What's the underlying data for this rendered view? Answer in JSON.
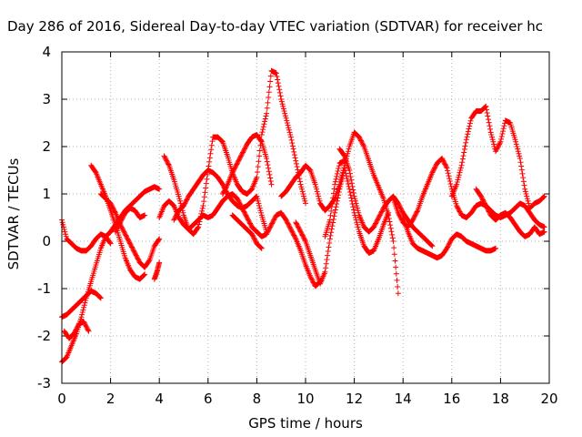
{
  "chart_data": {
    "type": "scatter",
    "title": "Day 286 of 2016, Sidereal Day-to-day VTEC variation (SDTVAR) for receiver hc",
    "xlabel": "GPS time / hours",
    "ylabel": "SDTVAR / TECUs",
    "xlim": [
      0,
      20
    ],
    "ylim": [
      -3,
      4
    ],
    "xticks": [
      0,
      2,
      4,
      6,
      8,
      10,
      12,
      14,
      16,
      18,
      20
    ],
    "yticks": [
      -3,
      -2,
      -1,
      0,
      1,
      2,
      3,
      4
    ],
    "grid": true,
    "marker": "+",
    "color": "#ff0000",
    "series": [
      {
        "x": [
          0,
          0.2,
          0.4,
          0.6,
          0.8,
          1.0,
          1.2,
          1.4,
          1.6,
          1.8,
          2.0
        ],
        "y": [
          0.45,
          0.05,
          -0.05,
          -0.15,
          -0.2,
          -0.2,
          -0.1,
          0.05,
          0.15,
          0.1,
          -0.05
        ]
      },
      {
        "x": [
          0,
          0.2,
          0.4,
          0.6,
          0.8,
          1.0,
          1.2,
          1.4,
          1.6,
          1.8,
          2.0,
          2.2,
          2.4,
          2.6,
          2.8,
          3.0,
          3.2,
          3.4,
          3.6,
          3.8,
          4.0
        ],
        "y": [
          -2.55,
          -2.45,
          -2.2,
          -1.95,
          -1.6,
          -1.2,
          -0.85,
          -0.5,
          -0.15,
          0.1,
          0.2,
          0.35,
          0.5,
          0.65,
          0.75,
          0.85,
          0.95,
          1.05,
          1.1,
          1.15,
          1.1
        ]
      },
      {
        "x": [
          0,
          0.2,
          0.4,
          0.6,
          0.8,
          1.0,
          1.2,
          1.4,
          1.6
        ],
        "y": [
          -1.6,
          -1.55,
          -1.45,
          -1.35,
          -1.25,
          -1.15,
          -1.05,
          -1.1,
          -1.2
        ]
      },
      {
        "x": [
          0.1,
          0.3,
          0.5,
          0.7,
          0.9,
          1.1
        ],
        "y": [
          -1.9,
          -2.05,
          -1.95,
          -1.75,
          -1.7,
          -1.9
        ]
      },
      {
        "x": [
          1.2,
          1.4,
          1.6,
          1.8,
          2.0,
          2.2,
          2.4,
          2.6,
          2.8,
          3.0,
          3.2,
          3.4
        ],
        "y": [
          1.6,
          1.45,
          1.2,
          0.95,
          0.65,
          0.35,
          0.0,
          -0.35,
          -0.6,
          -0.75,
          -0.8,
          -0.7
        ]
      },
      {
        "x": [
          1.6,
          1.8,
          2.0,
          2.2,
          2.4,
          2.6,
          2.8,
          3.0,
          3.2,
          3.4,
          3.6,
          3.8,
          4.0
        ],
        "y": [
          1.0,
          0.9,
          0.8,
          0.6,
          0.35,
          0.15,
          -0.05,
          -0.25,
          -0.45,
          -0.55,
          -0.4,
          -0.1,
          0.05
        ]
      },
      {
        "x": [
          2.2,
          2.4,
          2.6,
          2.8,
          3.0,
          3.2,
          3.4
        ],
        "y": [
          0.2,
          0.4,
          0.6,
          0.7,
          0.65,
          0.5,
          0.55
        ]
      },
      {
        "x": [
          3.8,
          3.9,
          4.0
        ],
        "y": [
          -0.8,
          -0.65,
          -0.45
        ]
      },
      {
        "x": [
          4.0,
          4.2,
          4.4,
          4.6,
          4.8,
          5.0,
          5.2,
          5.4,
          5.6,
          5.8,
          6.0,
          6.2,
          6.4,
          6.6,
          6.8,
          7.0,
          7.2,
          7.4,
          7.6,
          7.8,
          8.0,
          8.2,
          8.4,
          8.6,
          8.8,
          9.0,
          9.2,
          9.4,
          9.6,
          9.8,
          10.0,
          10.2,
          10.4,
          10.6
        ],
        "y": [
          0.5,
          0.75,
          0.85,
          0.75,
          0.5,
          0.35,
          0.25,
          0.35,
          0.45,
          0.55,
          0.5,
          0.55,
          0.7,
          0.85,
          0.95,
          1.0,
          0.9,
          0.7,
          0.5,
          0.3,
          0.2,
          0.1,
          0.15,
          0.35,
          0.55,
          0.6,
          0.45,
          0.25,
          0.05,
          -0.2,
          -0.5,
          -0.75,
          -0.95,
          -0.85
        ]
      },
      {
        "x": [
          4.2,
          4.4,
          4.6,
          4.8,
          5.0,
          5.2,
          5.4,
          5.6,
          5.8,
          6.0,
          6.2,
          6.4,
          6.6,
          6.8,
          7.0,
          7.2,
          7.4,
          7.6,
          7.8,
          8.0,
          8.2,
          8.4,
          8.6,
          8.8,
          9.0,
          9.2,
          9.4,
          9.6,
          9.8,
          10.0
        ],
        "y": [
          1.8,
          1.6,
          1.3,
          0.95,
          0.55,
          0.25,
          0.15,
          0.3,
          0.75,
          1.5,
          2.2,
          2.2,
          2.1,
          1.8,
          1.45,
          1.2,
          1.05,
          1.0,
          1.1,
          1.35,
          2.25,
          2.7,
          3.6,
          3.55,
          3.0,
          2.6,
          2.2,
          1.7,
          1.2,
          0.8
        ]
      },
      {
        "x": [
          4.6,
          4.8,
          5.0,
          5.2,
          5.4,
          5.6,
          5.8,
          6.0,
          6.2,
          6.4,
          6.6,
          6.8,
          7.0,
          7.2,
          7.4,
          7.6,
          7.8,
          8.0,
          8.2,
          8.4
        ],
        "y": [
          0.45,
          0.65,
          0.75,
          0.95,
          1.1,
          1.25,
          1.4,
          1.5,
          1.45,
          1.35,
          1.2,
          1.0,
          0.85,
          0.75,
          0.7,
          0.75,
          0.85,
          0.95,
          0.55,
          0.2
        ]
      },
      {
        "x": [
          6.6,
          6.8,
          7.0,
          7.2,
          7.4,
          7.6,
          7.8,
          8.0,
          8.2,
          8.4,
          8.6
        ],
        "y": [
          1.0,
          1.2,
          1.45,
          1.65,
          1.85,
          2.05,
          2.2,
          2.25,
          2.1,
          1.75,
          1.2
        ]
      },
      {
        "x": [
          7.0,
          7.2,
          7.4,
          7.6,
          7.8,
          8.0,
          8.2
        ],
        "y": [
          0.55,
          0.45,
          0.35,
          0.25,
          0.15,
          -0.05,
          -0.15
        ]
      },
      {
        "x": [
          9.0,
          9.2,
          9.4,
          9.6,
          9.8,
          10.0,
          10.2,
          10.4,
          10.6,
          10.8,
          11.0,
          11.2,
          11.4,
          11.6,
          11.8,
          12.0,
          12.2,
          12.4,
          12.6,
          12.8,
          13.0,
          13.2,
          13.4,
          13.6,
          13.8
        ],
        "y": [
          0.95,
          1.05,
          1.2,
          1.35,
          1.45,
          1.6,
          1.5,
          1.2,
          0.8,
          0.65,
          0.75,
          0.9,
          1.2,
          1.6,
          2.0,
          2.3,
          2.2,
          2.0,
          1.7,
          1.4,
          1.15,
          0.9,
          0.55,
          0.0,
          -1.1
        ]
      },
      {
        "x": [
          9.6,
          9.8,
          10.0,
          10.2,
          10.4,
          10.6,
          10.8,
          11.0,
          11.2,
          11.4,
          11.6,
          11.8,
          12.0,
          12.2,
          12.4,
          12.6,
          12.8,
          13.0,
          13.2,
          13.4
        ],
        "y": [
          0.4,
          0.2,
          0.0,
          -0.3,
          -0.6,
          -0.9,
          -0.65,
          0.05,
          0.6,
          1.1,
          1.55,
          1.1,
          0.6,
          0.2,
          -0.1,
          -0.25,
          -0.2,
          0.05,
          0.35,
          0.6
        ]
      },
      {
        "x": [
          11.4,
          11.6,
          11.8,
          12.0,
          12.2,
          12.4,
          12.6,
          12.8,
          13.0,
          13.2,
          13.4,
          13.6,
          13.8,
          14.0,
          14.2,
          14.4,
          14.6,
          14.8,
          15.0,
          15.2
        ],
        "y": [
          1.95,
          1.8,
          1.5,
          0.95,
          0.55,
          0.3,
          0.2,
          0.3,
          0.5,
          0.7,
          0.85,
          0.95,
          0.8,
          0.6,
          0.45,
          0.3,
          0.2,
          0.1,
          0.0,
          -0.1
        ]
      },
      {
        "x": [
          13.6,
          13.8,
          14.0,
          14.2,
          14.4,
          14.6,
          14.8,
          15.0,
          15.2,
          15.4,
          15.6,
          15.8,
          16.0,
          16.2,
          16.4,
          16.6,
          16.8,
          17.0,
          17.2,
          17.4,
          17.6,
          17.8,
          18.0,
          18.2,
          18.4,
          18.6,
          18.8,
          19.0,
          19.2,
          19.4,
          19.6,
          19.8
        ],
        "y": [
          0.9,
          0.6,
          0.4,
          0.3,
          0.45,
          0.65,
          0.95,
          1.2,
          1.45,
          1.65,
          1.75,
          1.55,
          1.1,
          0.75,
          0.55,
          0.5,
          0.6,
          0.75,
          0.8,
          0.75,
          0.65,
          0.55,
          0.5,
          0.55,
          0.6,
          0.7,
          0.8,
          0.75,
          0.6,
          0.45,
          0.35,
          0.3
        ]
      },
      {
        "x": [
          14.0,
          14.2,
          14.4,
          14.6,
          14.8,
          15.0,
          15.2,
          15.4,
          15.6,
          15.8,
          16.0,
          16.2,
          16.4,
          16.6,
          16.8,
          17.0,
          17.2,
          17.4,
          17.6,
          17.8
        ],
        "y": [
          0.5,
          0.2,
          -0.05,
          -0.15,
          -0.2,
          -0.25,
          -0.3,
          -0.35,
          -0.3,
          -0.15,
          0.05,
          0.15,
          0.1,
          0.0,
          -0.05,
          -0.1,
          -0.15,
          -0.2,
          -0.2,
          -0.15
        ]
      },
      {
        "x": [
          16.0,
          16.2,
          16.4,
          16.6,
          16.8,
          17.0,
          17.2,
          17.4,
          17.6,
          17.8,
          18.0,
          18.2,
          18.4,
          18.6,
          18.8,
          19.0,
          19.2,
          19.4,
          19.6,
          19.8
        ],
        "y": [
          0.95,
          1.2,
          1.6,
          2.15,
          2.6,
          2.75,
          2.75,
          2.85,
          2.3,
          1.9,
          2.1,
          2.55,
          2.5,
          2.15,
          1.75,
          1.1,
          0.7,
          0.8,
          0.85,
          0.95
        ]
      },
      {
        "x": [
          17.0,
          17.2,
          17.4,
          17.6,
          17.8,
          18.0,
          18.2,
          18.4,
          18.6,
          18.8,
          19.0,
          19.2,
          19.4,
          19.6,
          19.8
        ],
        "y": [
          1.1,
          0.95,
          0.75,
          0.55,
          0.45,
          0.55,
          0.6,
          0.5,
          0.35,
          0.2,
          0.1,
          0.15,
          0.3,
          0.15,
          0.2
        ]
      },
      {
        "x": [
          10.8,
          11.0,
          11.2,
          11.4,
          11.6
        ],
        "y": [
          0.1,
          0.45,
          1.2,
          1.65,
          1.7
        ]
      }
    ]
  }
}
